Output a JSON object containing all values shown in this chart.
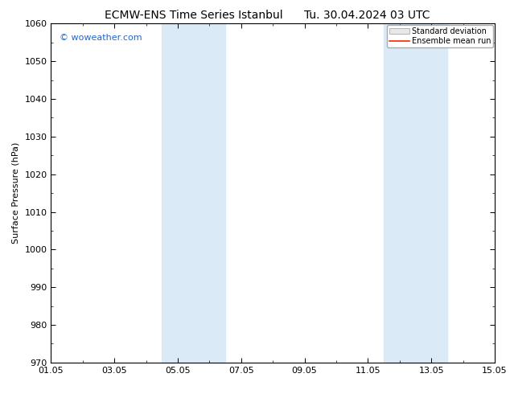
{
  "title_left": "ECMW-ENS Time Series Istanbul",
  "title_right": "Tu. 30.04.2024 03 UTC",
  "ylabel": "Surface Pressure (hPa)",
  "ylim": [
    970,
    1060
  ],
  "yticks": [
    970,
    980,
    990,
    1000,
    1010,
    1020,
    1030,
    1040,
    1050,
    1060
  ],
  "xlim": [
    0,
    14
  ],
  "xtick_positions": [
    0,
    2,
    4,
    6,
    8,
    10,
    12,
    14
  ],
  "xtick_labels": [
    "01.05",
    "03.05",
    "05.05",
    "07.05",
    "09.05",
    "11.05",
    "13.05",
    "15.05"
  ],
  "shaded_bands": [
    {
      "x_start": 3.5,
      "x_end": 5.5
    },
    {
      "x_start": 10.5,
      "x_end": 12.5
    }
  ],
  "shade_color": "#daeaf7",
  "watermark": "© woweather.com",
  "watermark_color": "#2266cc",
  "legend_std_color": "#e8e8e8",
  "legend_std_edge": "#aaaaaa",
  "legend_mean_color": "#ff2200",
  "background_color": "#ffffff",
  "title_fontsize": 10,
  "ylabel_fontsize": 8,
  "tick_fontsize": 8,
  "watermark_fontsize": 8,
  "legend_fontsize": 7
}
